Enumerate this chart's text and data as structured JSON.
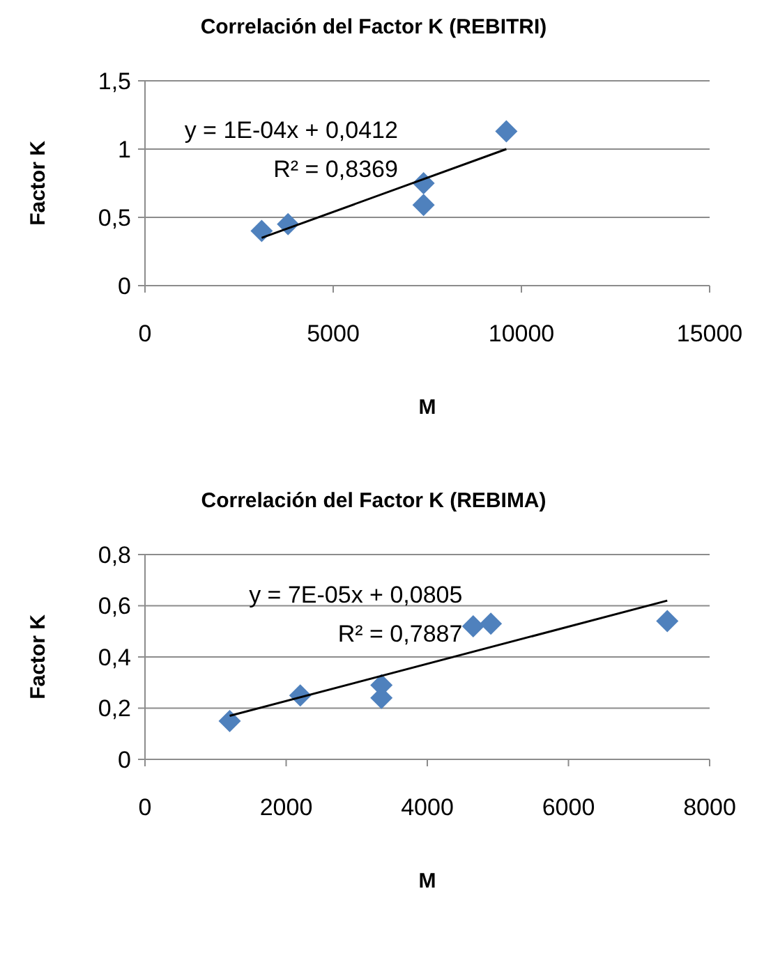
{
  "chart_data": [
    {
      "type": "scatter",
      "title": "Correlación del Factor K (REBITRI)",
      "xlabel": "M",
      "ylabel": "Factor K",
      "xlim": [
        0,
        15000
      ],
      "xticks": [
        0,
        5000,
        10000,
        15000
      ],
      "ylim": [
        0,
        1.5
      ],
      "yticks": [
        {
          "value": 0,
          "label": "0"
        },
        {
          "value": 0.5,
          "label": "0,5"
        },
        {
          "value": 1,
          "label": "1"
        },
        {
          "value": 1.5,
          "label": "1,5"
        }
      ],
      "grid": "y",
      "marker": "diamond",
      "series": [
        {
          "type": "scatter",
          "color": "#4f81bd",
          "x": [
            3100,
            3800,
            7400,
            7400,
            9600
          ],
          "values": [
            0.4,
            0.45,
            0.75,
            0.59,
            1.13
          ]
        },
        {
          "type": "line",
          "color": "#000000",
          "marker": "none",
          "x": [
            3100,
            9600
          ],
          "values": [
            0.35,
            1.0
          ]
        }
      ],
      "annotations": [
        "y = 1E-04x + 0,0412",
        "R² = 0,8369"
      ]
    },
    {
      "type": "scatter",
      "title": "Correlación del Factor K (REBIMA)",
      "xlabel": "M",
      "ylabel": "Factor K",
      "xlim": [
        0,
        8000
      ],
      "xticks": [
        0,
        2000,
        4000,
        6000,
        8000
      ],
      "ylim": [
        0,
        0.8
      ],
      "yticks": [
        {
          "value": 0,
          "label": "0"
        },
        {
          "value": 0.2,
          "label": "0,2"
        },
        {
          "value": 0.4,
          "label": "0,4"
        },
        {
          "value": 0.6,
          "label": "0,6"
        },
        {
          "value": 0.8,
          "label": "0,8"
        }
      ],
      "grid": "y",
      "marker": "diamond",
      "series": [
        {
          "type": "scatter",
          "color": "#4f81bd",
          "x": [
            1200,
            2200,
            3350,
            3350,
            4650,
            4900,
            7400
          ],
          "values": [
            0.15,
            0.25,
            0.29,
            0.24,
            0.52,
            0.53,
            0.54
          ]
        },
        {
          "type": "line",
          "color": "#000000",
          "marker": "none",
          "x": [
            1200,
            7400
          ],
          "values": [
            0.17,
            0.62
          ]
        }
      ],
      "annotations": [
        "y = 7E-05x + 0,0805",
        "R² = 0,7887"
      ]
    }
  ]
}
